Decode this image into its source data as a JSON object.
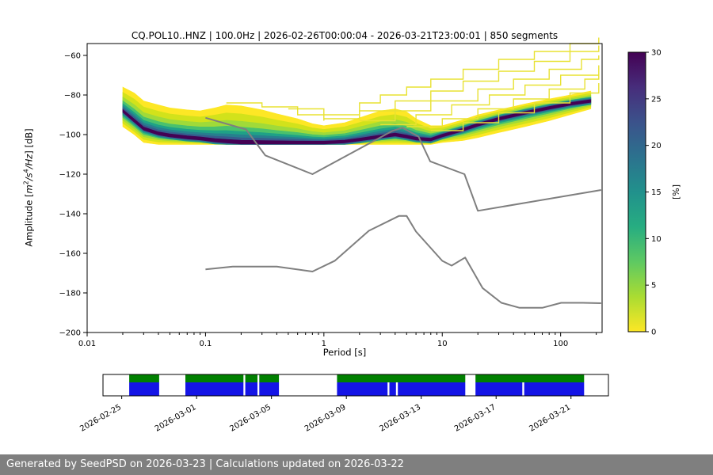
{
  "title": "CQ.POL10..HNZ | 100.0Hz | 2026-02-26T00:00:04 - 2026-03-21T23:00:01 | 850 segments",
  "footer": "Generated by SeedPSD on 2026-03-23 | Calculations updated on 2026-03-22",
  "chart_data": {
    "type": "heatmap",
    "title": "CQ.POL10..HNZ | 100.0Hz | 2026-02-26T00:00:04 - 2026-03-21T23:00:01 | 850 segments",
    "station": "CQ.POL10..HNZ",
    "sampling_rate": "100.0Hz",
    "time_range": "2026-02-26T00:00:04 - 2026-03-21T23:00:01",
    "segments": 850,
    "xlabel": "Period [s]",
    "ylabel": "Amplitude [m^2/s^4/Hz] [dB]",
    "ylabel_parts": {
      "pre": "Amplitude [",
      "m": "m",
      "sup1": "2",
      "s": "/s",
      "sup2": "4",
      "hz": "/Hz",
      "post": "] [dB]"
    },
    "x_scale": "log",
    "xlim": [
      0.01,
      224
    ],
    "ylim": [
      -200,
      -54
    ],
    "x_ticks": [
      "0.01",
      "0.1",
      "1",
      "10",
      "100"
    ],
    "y_ticks": [
      -60,
      -80,
      -100,
      -120,
      -140,
      -160,
      -180,
      -200
    ],
    "grid": false,
    "line_color": "#7f7f7f",
    "outlier_color": "#e8e232",
    "colorbar": {
      "label": "[%]",
      "min": 0,
      "max": 30,
      "ticks": [
        0,
        5,
        10,
        15,
        20,
        25,
        30
      ],
      "colormap": "viridis_r",
      "colors_top_to_bottom": [
        "#440154",
        "#472d7b",
        "#3b528b",
        "#2c728e",
        "#21918c",
        "#27ad81",
        "#5ec962",
        "#aadc32",
        "#fde725"
      ]
    },
    "density_levels": [
      {
        "color": "#fde725",
        "f": 1.0,
        "minw": 0
      },
      {
        "color": "#d2e21b",
        "f": 0.78,
        "minw": 0
      },
      {
        "color": "#a0da39",
        "f": 0.58,
        "minw": 0
      },
      {
        "color": "#4ac16d",
        "f": 0.42,
        "minw": 0
      },
      {
        "color": "#1fa187",
        "f": 0.3,
        "minw": 1.8
      },
      {
        "color": "#277f8e",
        "f": 0.21,
        "minw": 1.4
      },
      {
        "color": "#365c8d",
        "f": 0.13,
        "minw": 1.0
      },
      {
        "color": "#440154",
        "f": 0.06,
        "minw": 0.7
      }
    ],
    "ppsd": {
      "periods": [
        0.02,
        0.025,
        0.03,
        0.04,
        0.05,
        0.07,
        0.09,
        0.12,
        0.15,
        0.2,
        0.3,
        0.4,
        0.6,
        0.8,
        1.0,
        1.5,
        2.0,
        3.0,
        4.0,
        5.0,
        6.0,
        8.0,
        10,
        15,
        20,
        30,
        50,
        80,
        120,
        180
      ],
      "top": [
        -76,
        -79,
        -83,
        -85,
        -86.5,
        -87.5,
        -88,
        -86.5,
        -85,
        -85.5,
        -87.5,
        -89.5,
        -92,
        -94.5,
        -95.5,
        -94,
        -91.5,
        -88,
        -87,
        -88.5,
        -92,
        -95.5,
        -95.5,
        -92.5,
        -90,
        -87.5,
        -84.5,
        -82,
        -80,
        -78
      ],
      "bottom": [
        -96,
        -100,
        -104,
        -105,
        -105,
        -105,
        -105,
        -105,
        -105,
        -105,
        -105,
        -105,
        -105,
        -105,
        -105,
        -105,
        -105,
        -105,
        -105,
        -105,
        -105,
        -105,
        -104,
        -103,
        -101.5,
        -99,
        -96,
        -93,
        -90,
        -87
      ],
      "mode": [
        -88,
        -93,
        -97,
        -99.5,
        -100.5,
        -101.5,
        -102,
        -103,
        -103.5,
        -104,
        -104,
        -104,
        -104,
        -104,
        -104,
        -103.5,
        -102.5,
        -101,
        -100,
        -101,
        -102,
        -102.5,
        -100.5,
        -97.5,
        -95,
        -92,
        -89,
        -86.5,
        -84.5,
        -83
      ]
    },
    "outlier_traces": [
      [
        [
          0.5,
          -87
        ],
        [
          1,
          -90
        ],
        [
          2,
          -84
        ],
        [
          3,
          -80
        ],
        [
          5,
          -76
        ],
        [
          8,
          -72
        ],
        [
          15,
          -67
        ],
        [
          30,
          -62
        ],
        [
          60,
          -58
        ],
        [
          120,
          -54
        ],
        [
          210,
          -51
        ]
      ],
      [
        [
          1,
          -92
        ],
        [
          2,
          -88
        ],
        [
          4,
          -83
        ],
        [
          8,
          -78
        ],
        [
          15,
          -73
        ],
        [
          30,
          -68
        ],
        [
          60,
          -63
        ],
        [
          120,
          -58
        ],
        [
          210,
          -55
        ]
      ],
      [
        [
          2,
          -93
        ],
        [
          4,
          -88
        ],
        [
          8,
          -83
        ],
        [
          20,
          -77
        ],
        [
          40,
          -72
        ],
        [
          80,
          -67
        ],
        [
          150,
          -62
        ],
        [
          210,
          -60
        ]
      ],
      [
        [
          3,
          -95
        ],
        [
          6,
          -90
        ],
        [
          12,
          -85
        ],
        [
          25,
          -80
        ],
        [
          50,
          -75
        ],
        [
          100,
          -70
        ],
        [
          210,
          -65
        ]
      ],
      [
        [
          5,
          -96
        ],
        [
          10,
          -92
        ],
        [
          20,
          -87
        ],
        [
          40,
          -82
        ],
        [
          80,
          -77
        ],
        [
          160,
          -72
        ],
        [
          210,
          -70
        ]
      ],
      [
        [
          8,
          -98
        ],
        [
          15,
          -94
        ],
        [
          30,
          -89
        ],
        [
          60,
          -84
        ],
        [
          120,
          -79
        ],
        [
          210,
          -74
        ]
      ],
      [
        [
          0.15,
          -84
        ],
        [
          0.3,
          -86
        ],
        [
          0.6,
          -90
        ],
        [
          1,
          -93
        ]
      ]
    ],
    "noise_models": {
      "nhnm": [
        [
          0.1,
          -91.5
        ],
        [
          0.22,
          -97.4
        ],
        [
          0.32,
          -110.5
        ],
        [
          0.8,
          -120.0
        ],
        [
          3.8,
          -98.1
        ],
        [
          4.6,
          -96.5
        ],
        [
          6.3,
          -101.0
        ],
        [
          7.9,
          -113.5
        ],
        [
          15.4,
          -120.0
        ],
        [
          20.0,
          -138.5
        ],
        [
          220.0,
          -128.0
        ]
      ],
      "nlnm": [
        [
          0.1,
          -168.1
        ],
        [
          0.17,
          -166.7
        ],
        [
          0.4,
          -166.7
        ],
        [
          0.8,
          -169.2
        ],
        [
          1.24,
          -163.7
        ],
        [
          2.4,
          -148.6
        ],
        [
          4.3,
          -141.1
        ],
        [
          5.0,
          -141.1
        ],
        [
          6.0,
          -149.0
        ],
        [
          10.0,
          -163.8
        ],
        [
          12.0,
          -166.2
        ],
        [
          15.6,
          -162.1
        ],
        [
          21.9,
          -177.5
        ],
        [
          31.6,
          -185.0
        ],
        [
          45.0,
          -187.5
        ],
        [
          70.0,
          -187.5
        ],
        [
          101.0,
          -185.0
        ],
        [
          154.0,
          -185.0
        ],
        [
          220.0,
          -185.2
        ]
      ]
    }
  },
  "timeline": {
    "start_label": "2026-02-24",
    "end_label": "2026-03-23",
    "span_days": 27,
    "tick_labels": [
      "2026-02-25",
      "2026-03-01",
      "2026-03-05",
      "2026-03-09",
      "2026-03-13",
      "2026-03-17",
      "2026-03-21"
    ],
    "tick_days": [
      1,
      5,
      9,
      13,
      17,
      21,
      25
    ],
    "green_segments_days": [
      [
        1.4,
        3.0
      ],
      [
        4.4,
        7.5
      ],
      [
        7.6,
        8.25
      ],
      [
        8.35,
        9.4
      ],
      [
        12.5,
        19.35
      ],
      [
        19.9,
        25.7
      ]
    ],
    "blue_segments_days": [
      [
        1.4,
        3.0
      ],
      [
        4.4,
        7.5
      ],
      [
        7.6,
        8.25
      ],
      [
        8.35,
        9.4
      ],
      [
        12.5,
        15.2
      ],
      [
        15.3,
        15.65
      ],
      [
        15.75,
        19.35
      ],
      [
        19.9,
        22.4
      ],
      [
        22.5,
        25.7
      ]
    ],
    "colors": {
      "green": "#008000",
      "blue": "#1414e6"
    }
  }
}
